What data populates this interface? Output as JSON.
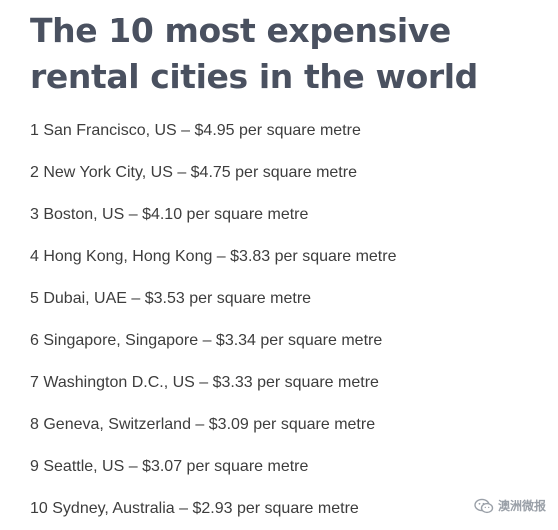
{
  "article": {
    "title": "The 10 most expensive rental cities in the world",
    "items": [
      "1 San Francisco, US – $4.95 per square metre",
      "2 New York City, US – $4.75 per square metre",
      "3 Boston, US – $4.10 per square metre",
      "4 Hong Kong, Hong Kong – $3.83 per square metre",
      "5 Dubai, UAE – $3.53 per square metre",
      "6 Singapore, Singapore – $3.34 per square metre",
      "7 Washington D.C., US – $3.33 per square metre",
      "8 Geneva, Switzerland – $3.09 per square metre",
      "9 Seattle, US – $3.07 per square metre",
      "10 Sydney, Australia – $2.93 per square metre"
    ]
  },
  "watermark": {
    "text": "澳洲微报",
    "icon": "wechat-icon"
  }
}
